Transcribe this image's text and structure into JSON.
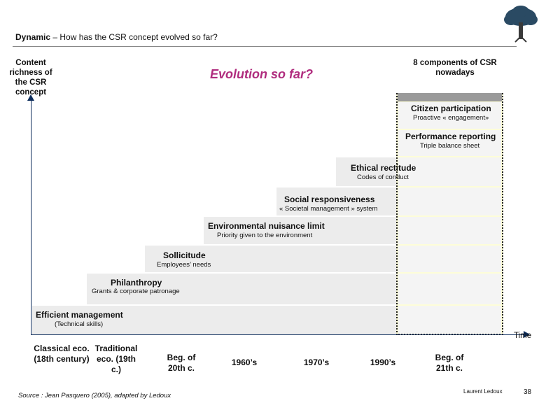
{
  "header": {
    "title_bold": "Dynamic",
    "title_rest": " – How has the CSR concept evolved so far?"
  },
  "yaxis_label": "Content richness of the CSR concept",
  "main_title": "Evolution so far?",
  "components_label": "8 components of CSR nowadays",
  "xaxis_label": "Time",
  "steps": [
    {
      "title": "Efficient management",
      "subtitle": "(Technical skills)"
    },
    {
      "title": "Philanthropy",
      "subtitle": "Grants & corporate patronage"
    },
    {
      "title": "Sollicitude",
      "subtitle": "Employees’ needs"
    },
    {
      "title": "Environmental nuisance limit",
      "subtitle": "Priority given to the environment"
    },
    {
      "title": "Social responsiveness",
      "subtitle": "« Societal management » system"
    },
    {
      "title": "Ethical rectitude",
      "subtitle": "Codes of conduct"
    },
    {
      "title": "Performance reporting",
      "subtitle": "Triple balance sheet"
    },
    {
      "title": "Citizen participation",
      "subtitle": "Proactive « engagement»"
    }
  ],
  "eras": [
    "Classical eco. (18th century)",
    "Traditional eco. (19th c.)",
    "Beg. of 20th c.",
    "1960’s",
    "1970’s",
    "1990’s",
    "Beg. of 21th c."
  ],
  "footer": {
    "source": "Source : Jean Pasquero (2005), adapted by Ledoux",
    "author": "Laurent Ledoux",
    "page": "38"
  },
  "colors": {
    "title_accent": "#b02c7e",
    "axis": "#0d2d5c",
    "highlight_bg": "#fdfdd8"
  }
}
